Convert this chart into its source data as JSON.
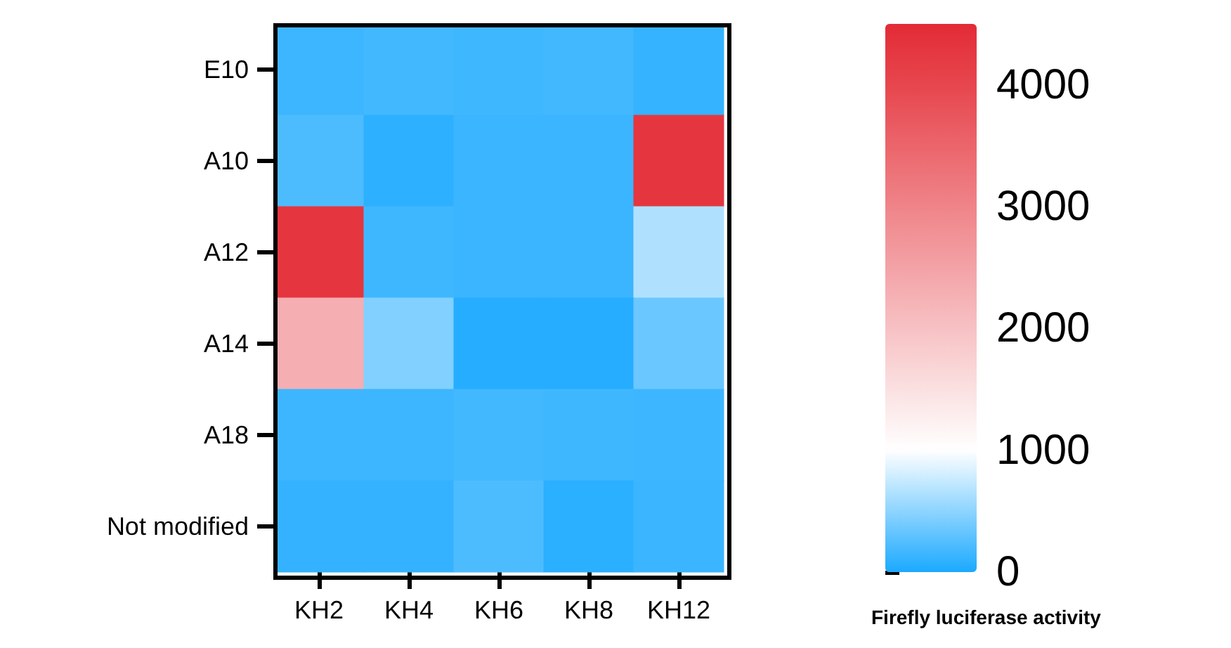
{
  "chart_data": {
    "type": "heatmap",
    "clabel": "Firefly luciferase activity",
    "categories": [
      "KH2",
      "KH4",
      "KH6",
      "KH8",
      "KH12"
    ],
    "y_categories": [
      "E10",
      "A10",
      "A12",
      "A14",
      "A18",
      "Not modified"
    ],
    "cells": [
      [
        150,
        170,
        160,
        170,
        120
      ],
      [
        220,
        80,
        140,
        140,
        4300
      ],
      [
        4300,
        160,
        140,
        140,
        650
      ],
      [
        2300,
        450,
        50,
        50,
        350
      ],
      [
        150,
        150,
        170,
        160,
        150
      ],
      [
        110,
        110,
        220,
        70,
        140
      ]
    ],
    "clim": [
      0,
      4500
    ],
    "cticks": [
      0,
      1000,
      2000,
      3000,
      4000
    ],
    "colors": [
      "#1ba9ff",
      "#8dd4ff",
      "#ffffff",
      "#fbe0e1",
      "#f7c1c4",
      "#f3a2a6",
      "#ef8489",
      "#eb656b",
      "#e7464e",
      "#e32b36"
    ]
  }
}
